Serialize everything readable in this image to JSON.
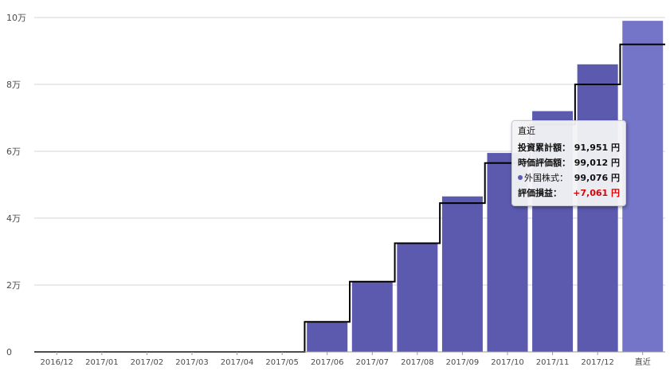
{
  "chart_data": {
    "type": "bar",
    "categories": [
      "2016/12",
      "2017/01",
      "2017/02",
      "2017/03",
      "2017/04",
      "2017/05",
      "2017/06",
      "2017/07",
      "2017/08",
      "2017/09",
      "2017/10",
      "2017/11",
      "2017/12",
      "直近"
    ],
    "series": [
      {
        "kind": "bar",
        "values": [
          0,
          0,
          0,
          0,
          0,
          0,
          9000,
          21000,
          32500,
          46500,
          59500,
          72000,
          86000,
          99012
        ]
      },
      {
        "kind": "step-line",
        "values": [
          0,
          0,
          0,
          0,
          0,
          0,
          9000,
          21000,
          32500,
          44500,
          56500,
          68000,
          80000,
          91951
        ]
      }
    ],
    "yticks": [
      {
        "value": 0,
        "label": "0"
      },
      {
        "value": 20000,
        "label": "2万"
      },
      {
        "value": 40000,
        "label": "4万"
      },
      {
        "value": 60000,
        "label": "6万"
      },
      {
        "value": 80000,
        "label": "8万"
      },
      {
        "value": 100000,
        "label": "10万"
      }
    ],
    "ylim": [
      0,
      100000
    ],
    "grid": true,
    "colors": {
      "bar": "#5b5aaf",
      "bar_highlight": "#7474c8",
      "line": "#000000",
      "grid": "#d6d6d6"
    }
  },
  "tooltip": {
    "title": "直近",
    "rows": [
      {
        "key": "投資累計額：",
        "value": "91,951 円"
      },
      {
        "key": "時価評価額：",
        "value": "99,012 円"
      },
      {
        "key": "外国株式：",
        "value": "99,076 円"
      },
      {
        "key": "評価損益：",
        "value": "+7,061 円"
      }
    ]
  }
}
